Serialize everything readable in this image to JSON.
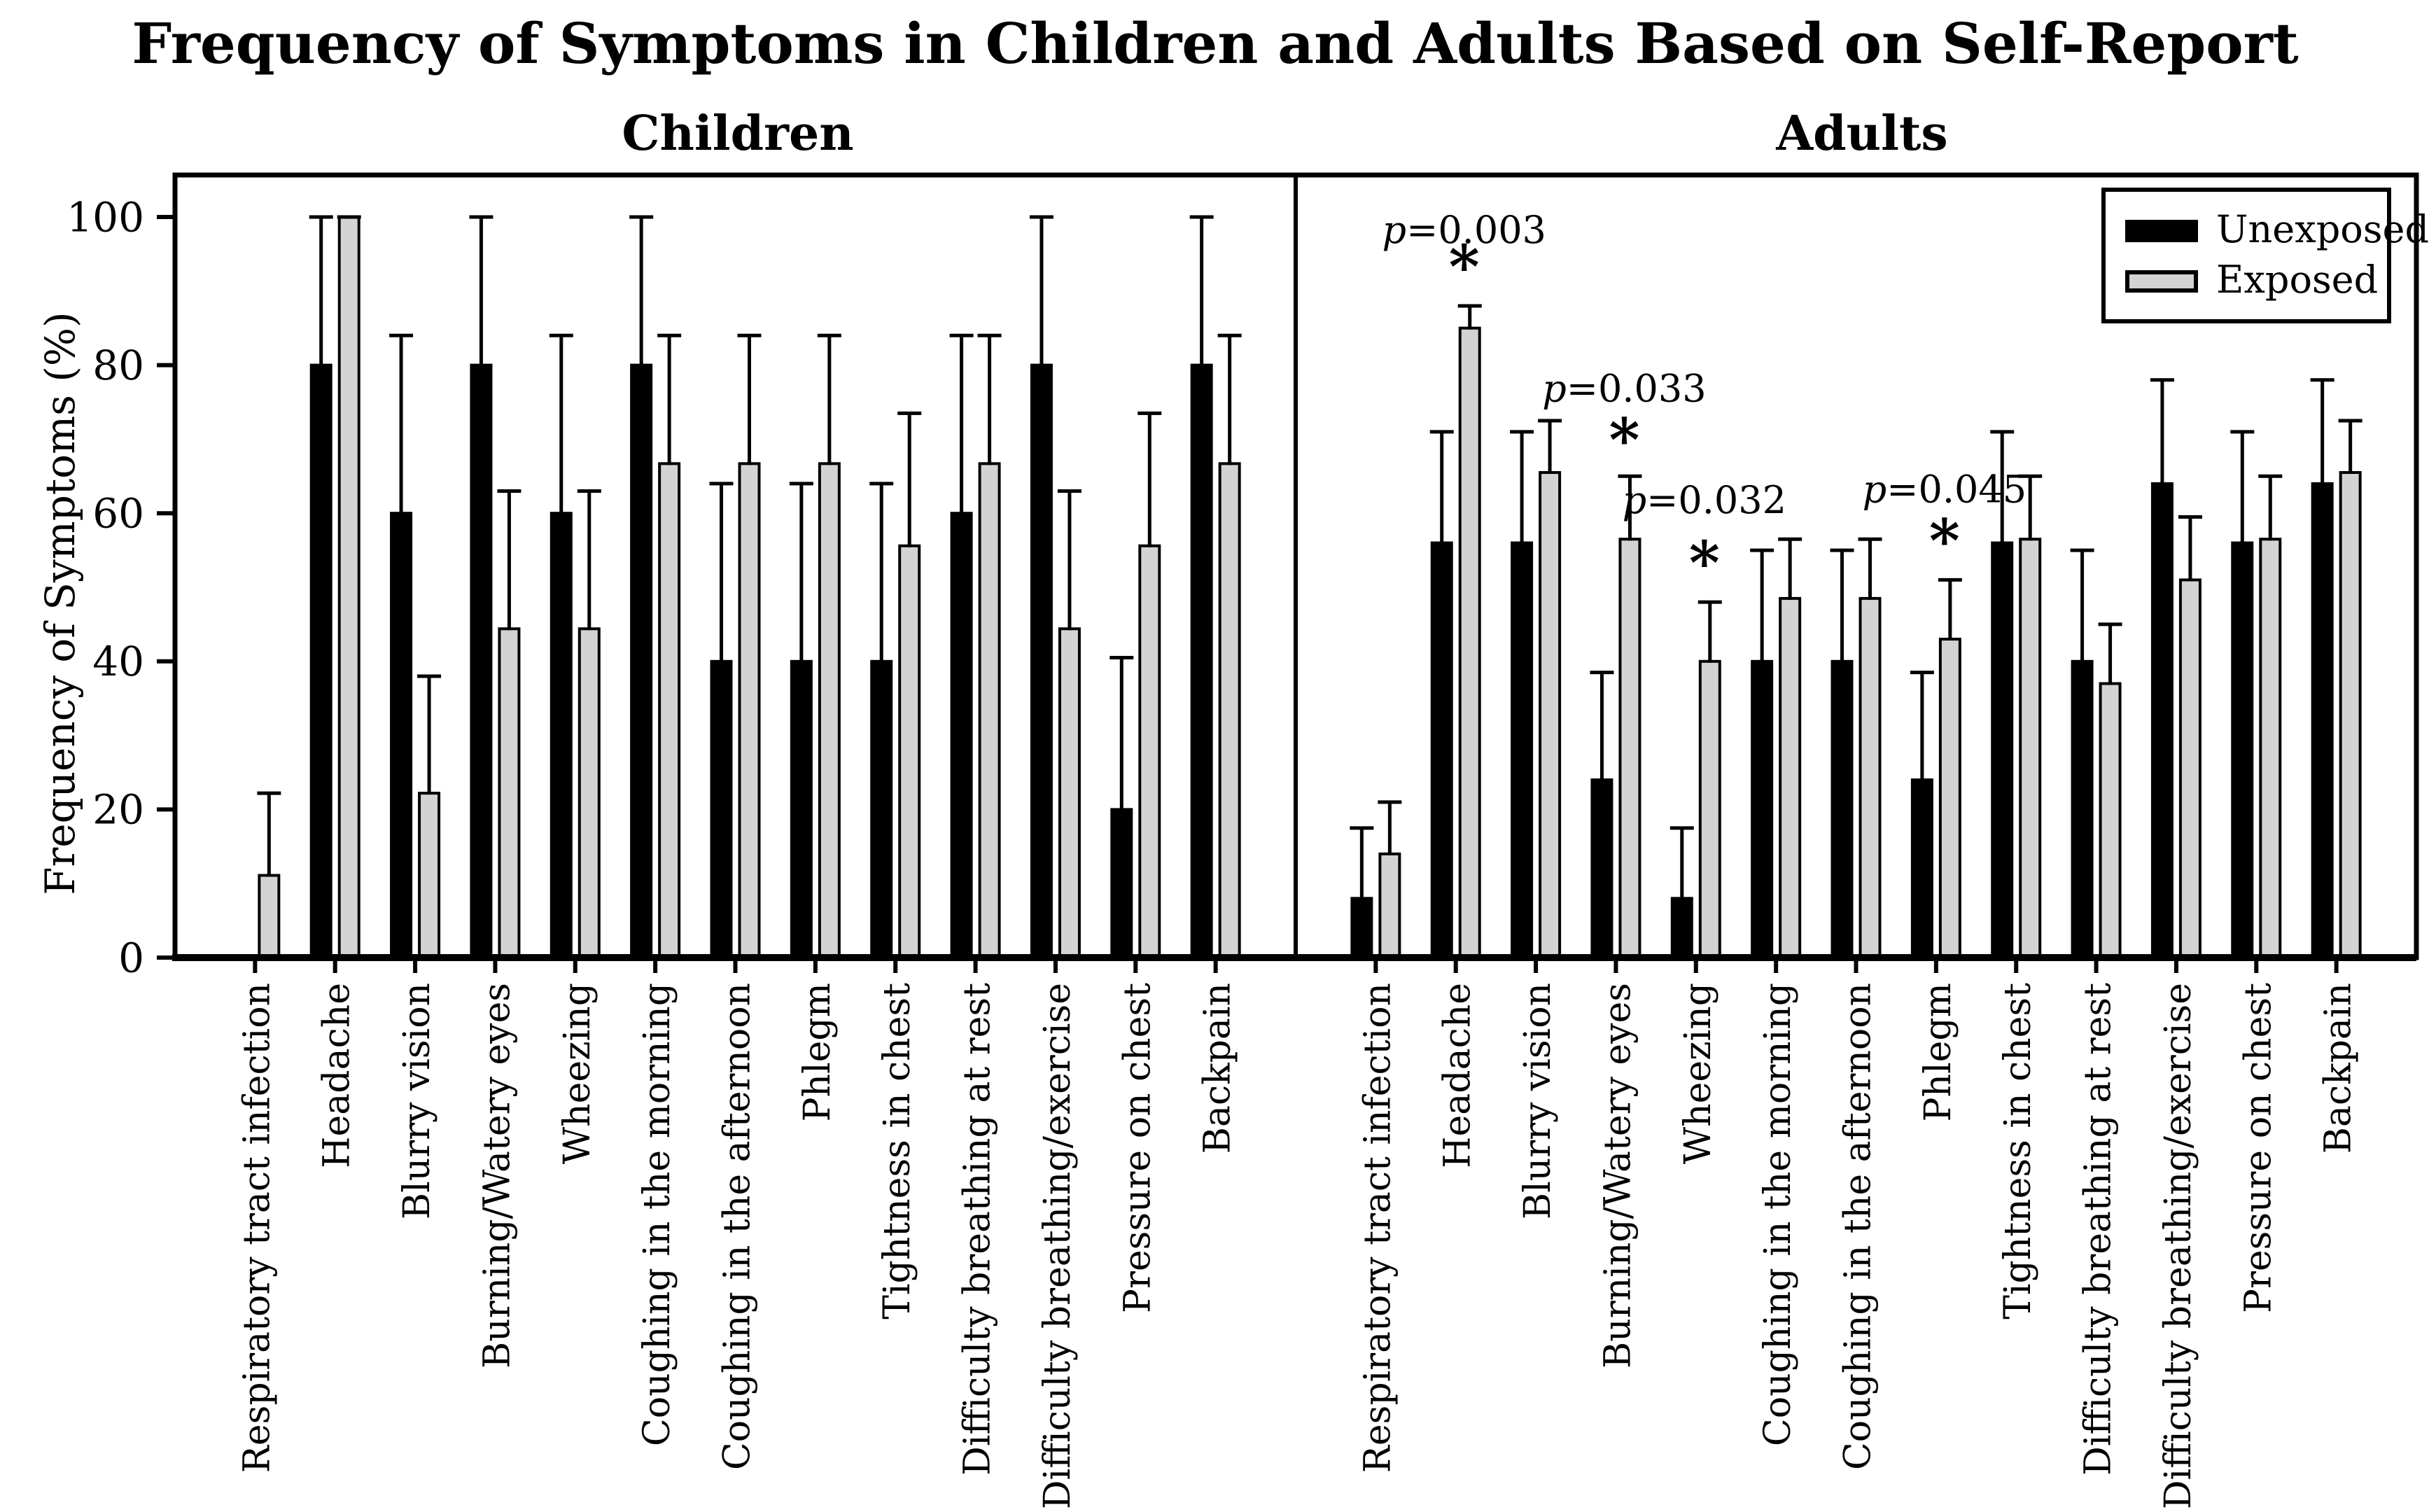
{
  "chart_data": {
    "type": "bar",
    "title": "Frequency of Symptoms in Children and Adults Based on Self-Report",
    "ylabel": "Frequency of Symptoms (%)",
    "ylim": [
      0,
      105.5
    ],
    "yticks": [
      0,
      20,
      40,
      60,
      80,
      100
    ],
    "grid": false,
    "legend": {
      "position": "upper-right",
      "entries": [
        {
          "label": "Unexposed",
          "color": "#000000"
        },
        {
          "label": "Exposed",
          "color": "#d3d3d3"
        }
      ]
    },
    "categories": [
      "Respiratory tract infection",
      "Headache",
      "Blurry vision",
      "Burning/Watery eyes",
      "Wheezing",
      "Coughing in the morning",
      "Coughing in the afternoon",
      "Phlegm",
      "Tightness in chest",
      "Difficulty breathing at rest",
      "Difficulty breathing/exercise",
      "Pressure on chest",
      "Backpain"
    ],
    "panels": [
      {
        "label": "Children",
        "series": [
          {
            "name": "Unexposed",
            "color": "#000000",
            "values": [
              0,
              80,
              60,
              80,
              60,
              80,
              40,
              40,
              40,
              60,
              80,
              20,
              80
            ],
            "error_top": [
              null,
              100,
              84,
              100,
              84,
              100,
              64,
              64,
              64,
              84,
              100,
              40.5,
              100
            ]
          },
          {
            "name": "Exposed",
            "color": "#d3d3d3",
            "values": [
              11.1,
              100,
              22.2,
              44.4,
              44.4,
              66.7,
              66.7,
              66.7,
              55.6,
              66.7,
              44.4,
              55.6,
              66.7
            ],
            "error_top": [
              22.2,
              100,
              38,
              63,
              63,
              84,
              84,
              84,
              73.5,
              84,
              63,
              73.5,
              84
            ]
          }
        ],
        "annotations": []
      },
      {
        "label": "Adults",
        "series": [
          {
            "name": "Unexposed",
            "color": "#000000",
            "values": [
              8,
              56,
              56,
              24,
              8,
              40,
              40,
              24,
              56,
              40,
              64,
              56,
              64
            ],
            "error_top": [
              17.5,
              71,
              71,
              38.5,
              17.5,
              55,
              55,
              38.5,
              71,
              55,
              78,
              71,
              78
            ]
          },
          {
            "name": "Exposed",
            "color": "#d3d3d3",
            "values": [
              14,
              85,
              65.5,
              56.5,
              40,
              48.5,
              48.5,
              43,
              56.5,
              37,
              51,
              56.5,
              65.5
            ],
            "error_top": [
              21,
              88,
              72.5,
              65,
              48,
              56.5,
              56.5,
              51,
              65,
              45,
              59.5,
              65,
              72.5
            ]
          }
        ],
        "annotations": [
          {
            "category": "Headache",
            "category_index": 1,
            "label": "p=0.003",
            "label_y": 96.5,
            "star": "*",
            "star_y": 90.5
          },
          {
            "category": "Burning/Watery eyes",
            "category_index": 3,
            "label": "p=0.033",
            "label_y": 75.1,
            "star": "*",
            "star_y": 67.1
          },
          {
            "category": "Wheezing",
            "category_index": 4,
            "label": "p=0.032",
            "label_y": 60.0,
            "star": "*",
            "star_y": 50.5
          },
          {
            "category": "Phlegm",
            "category_index": 7,
            "label": "p=0.045",
            "label_y": 61.5,
            "star": "*",
            "star_y": 53.5
          }
        ]
      }
    ],
    "colors": {
      "bar_outline": "#000000",
      "axis": "#000000",
      "background": "#ffffff"
    }
  }
}
